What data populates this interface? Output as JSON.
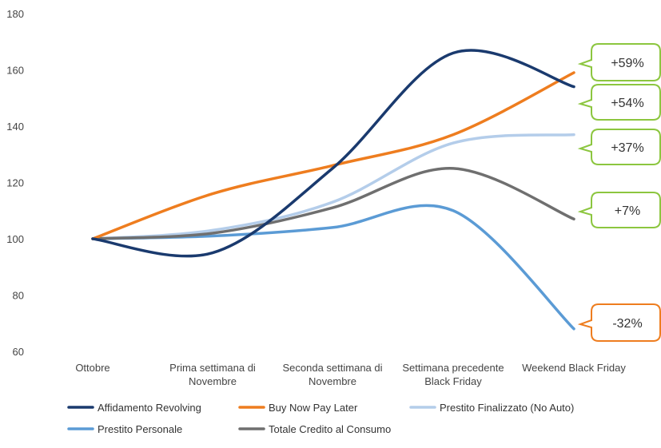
{
  "chart_data": {
    "type": "line",
    "categories": [
      [
        "Ottobre"
      ],
      [
        "Prima settimana di",
        "Novembre"
      ],
      [
        "Seconda settimana di",
        "Novembre"
      ],
      [
        "Settimana precedente",
        "Black Friday"
      ],
      [
        "Weekend Black Friday"
      ]
    ],
    "ylim": [
      60,
      180
    ],
    "yticks": [
      60,
      80,
      100,
      120,
      140,
      160,
      180
    ],
    "grid": false,
    "legend_position": "bottom",
    "series": [
      {
        "name": "Affidamento Revolving",
        "color": "#1a3a6e",
        "values": [
          100,
          95,
          125,
          166,
          154
        ]
      },
      {
        "name": "Buy Now Pay Later",
        "color": "#ee7d1f",
        "values": [
          100,
          116,
          126,
          137,
          159
        ]
      },
      {
        "name": "Prestito Finalizzato (No Auto)",
        "color": "#b4cdea",
        "values": [
          100,
          103,
          113,
          134,
          137
        ]
      },
      {
        "name": "Prestito Personale",
        "color": "#5b9bd5",
        "values": [
          100,
          101,
          104,
          110,
          68
        ]
      },
      {
        "name": "Totale Credito al Consumo",
        "color": "#6f6f6f",
        "values": [
          100,
          102,
          111,
          125,
          107
        ]
      }
    ],
    "annotations": [
      {
        "text": "+59%",
        "border": "#8cc63f"
      },
      {
        "text": "+54%",
        "border": "#8cc63f"
      },
      {
        "text": "+37%",
        "border": "#8cc63f"
      },
      {
        "text": "+7%",
        "border": "#8cc63f"
      },
      {
        "text": "-32%",
        "border": "#ee7d1f"
      }
    ]
  }
}
